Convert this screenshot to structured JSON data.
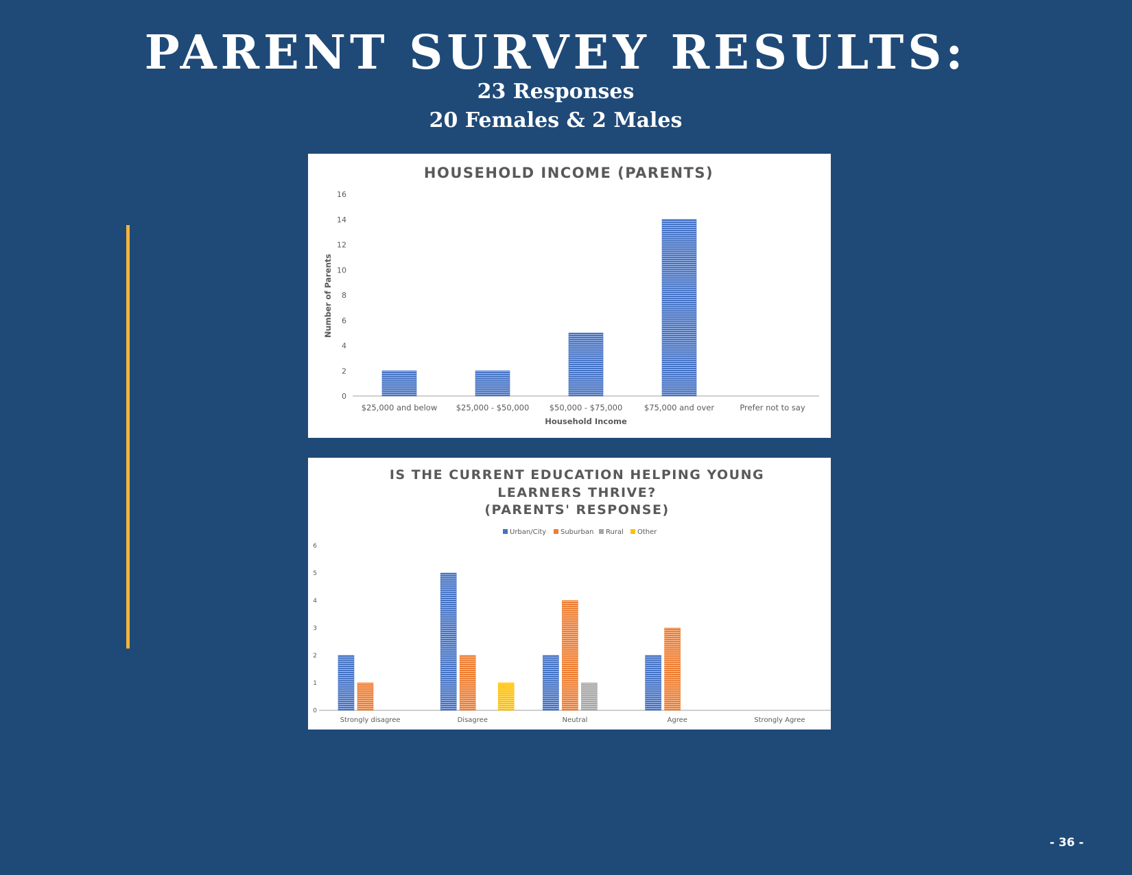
{
  "page": {
    "title": "PARENT SURVEY RESULTS:",
    "subtitle_line1": "23 Responses",
    "subtitle_line2": "20 Females & 2 Males",
    "page_number": "- 36 -",
    "background_color": "#1f4a78",
    "accent_color": "#f3b43a"
  },
  "chart_data": [
    {
      "type": "bar",
      "title": "HOUSEHOLD INCOME (PARENTS)",
      "xlabel": "Household Income",
      "ylabel": "Number of Parents",
      "categories": [
        "$25,000 and below",
        "$25,000 - $50,000",
        "$50,000 - $75,000",
        "$75,000 and over",
        "Prefer not to say"
      ],
      "series": [
        {
          "values": [
            2,
            2,
            5,
            14,
            0
          ],
          "color": "#4472c4"
        }
      ],
      "yticks": [
        0,
        2,
        4,
        6,
        8,
        10,
        12,
        14,
        16
      ],
      "ylim": [
        0,
        16
      ],
      "grid": false,
      "legend": "none"
    },
    {
      "type": "bar",
      "title_lines": [
        "IS THE CURRENT EDUCATION HELPING YOUNG",
        "LEARNERS THRIVE?",
        "(PARENTS' RESPONSE)"
      ],
      "categories": [
        "Strongly disagree",
        "Disagree",
        "Neutral",
        "Agree",
        "Strongly Agree"
      ],
      "series": [
        {
          "name": "Urban/City",
          "values": [
            2,
            5,
            2,
            2,
            0
          ],
          "color": "#4472c4"
        },
        {
          "name": "Suburban",
          "values": [
            1,
            2,
            4,
            3,
            0
          ],
          "color": "#ed7d31"
        },
        {
          "name": "Rural",
          "values": [
            0,
            0,
            1,
            0,
            0
          ],
          "color": "#a5a5a5"
        },
        {
          "name": "Other",
          "values": [
            0,
            1,
            0,
            0,
            0
          ],
          "color": "#ffc000"
        }
      ],
      "yticks": [
        0,
        1,
        2,
        3,
        4,
        5,
        6
      ],
      "ylim": [
        0,
        6
      ],
      "grid": false,
      "legend": "top"
    }
  ]
}
